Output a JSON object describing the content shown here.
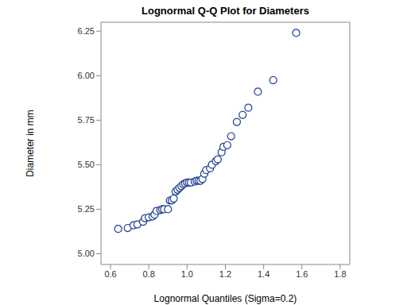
{
  "chart_data": {
    "type": "scatter",
    "title": "Lognormal Q-Q Plot for Diameters",
    "xlabel": "Lognormal Quantiles (Sigma=0.2)",
    "ylabel": "Diameter in mm",
    "x": [
      0.64,
      0.69,
      0.72,
      0.74,
      0.77,
      0.78,
      0.8,
      0.82,
      0.83,
      0.84,
      0.86,
      0.87,
      0.88,
      0.9,
      0.91,
      0.92,
      0.93,
      0.94,
      0.95,
      0.96,
      0.97,
      0.98,
      0.99,
      1.0,
      1.01,
      1.02,
      1.04,
      1.05,
      1.06,
      1.07,
      1.08,
      1.09,
      1.1,
      1.12,
      1.13,
      1.15,
      1.16,
      1.18,
      1.19,
      1.21,
      1.23,
      1.26,
      1.29,
      1.32,
      1.37,
      1.45,
      1.57
    ],
    "values": [
      5.14,
      5.145,
      5.16,
      5.165,
      5.18,
      5.2,
      5.205,
      5.21,
      5.22,
      5.24,
      5.245,
      5.25,
      5.25,
      5.25,
      5.3,
      5.3,
      5.31,
      5.35,
      5.36,
      5.37,
      5.38,
      5.39,
      5.395,
      5.4,
      5.4,
      5.4,
      5.405,
      5.41,
      5.41,
      5.41,
      5.42,
      5.45,
      5.47,
      5.48,
      5.5,
      5.52,
      5.53,
      5.57,
      5.6,
      5.61,
      5.66,
      5.74,
      5.78,
      5.82,
      5.91,
      5.975,
      6.24
    ],
    "color": "#1f3f8f",
    "marker": "circle",
    "xlim": [
      0.55,
      1.85
    ],
    "ylim": [
      4.94,
      6.3
    ],
    "xticks": [
      0.6,
      0.8,
      {
        "value": 1,
        "label": "1.0"
      },
      1.2,
      1.4,
      1.6,
      1.8
    ],
    "yticks": [
      {
        "value": 5,
        "label": "5.00"
      },
      5.25,
      {
        "value": 5.5,
        "label": "5.50"
      },
      5.75,
      {
        "value": 6,
        "label": "6.00"
      },
      6.25
    ],
    "grid": false
  }
}
